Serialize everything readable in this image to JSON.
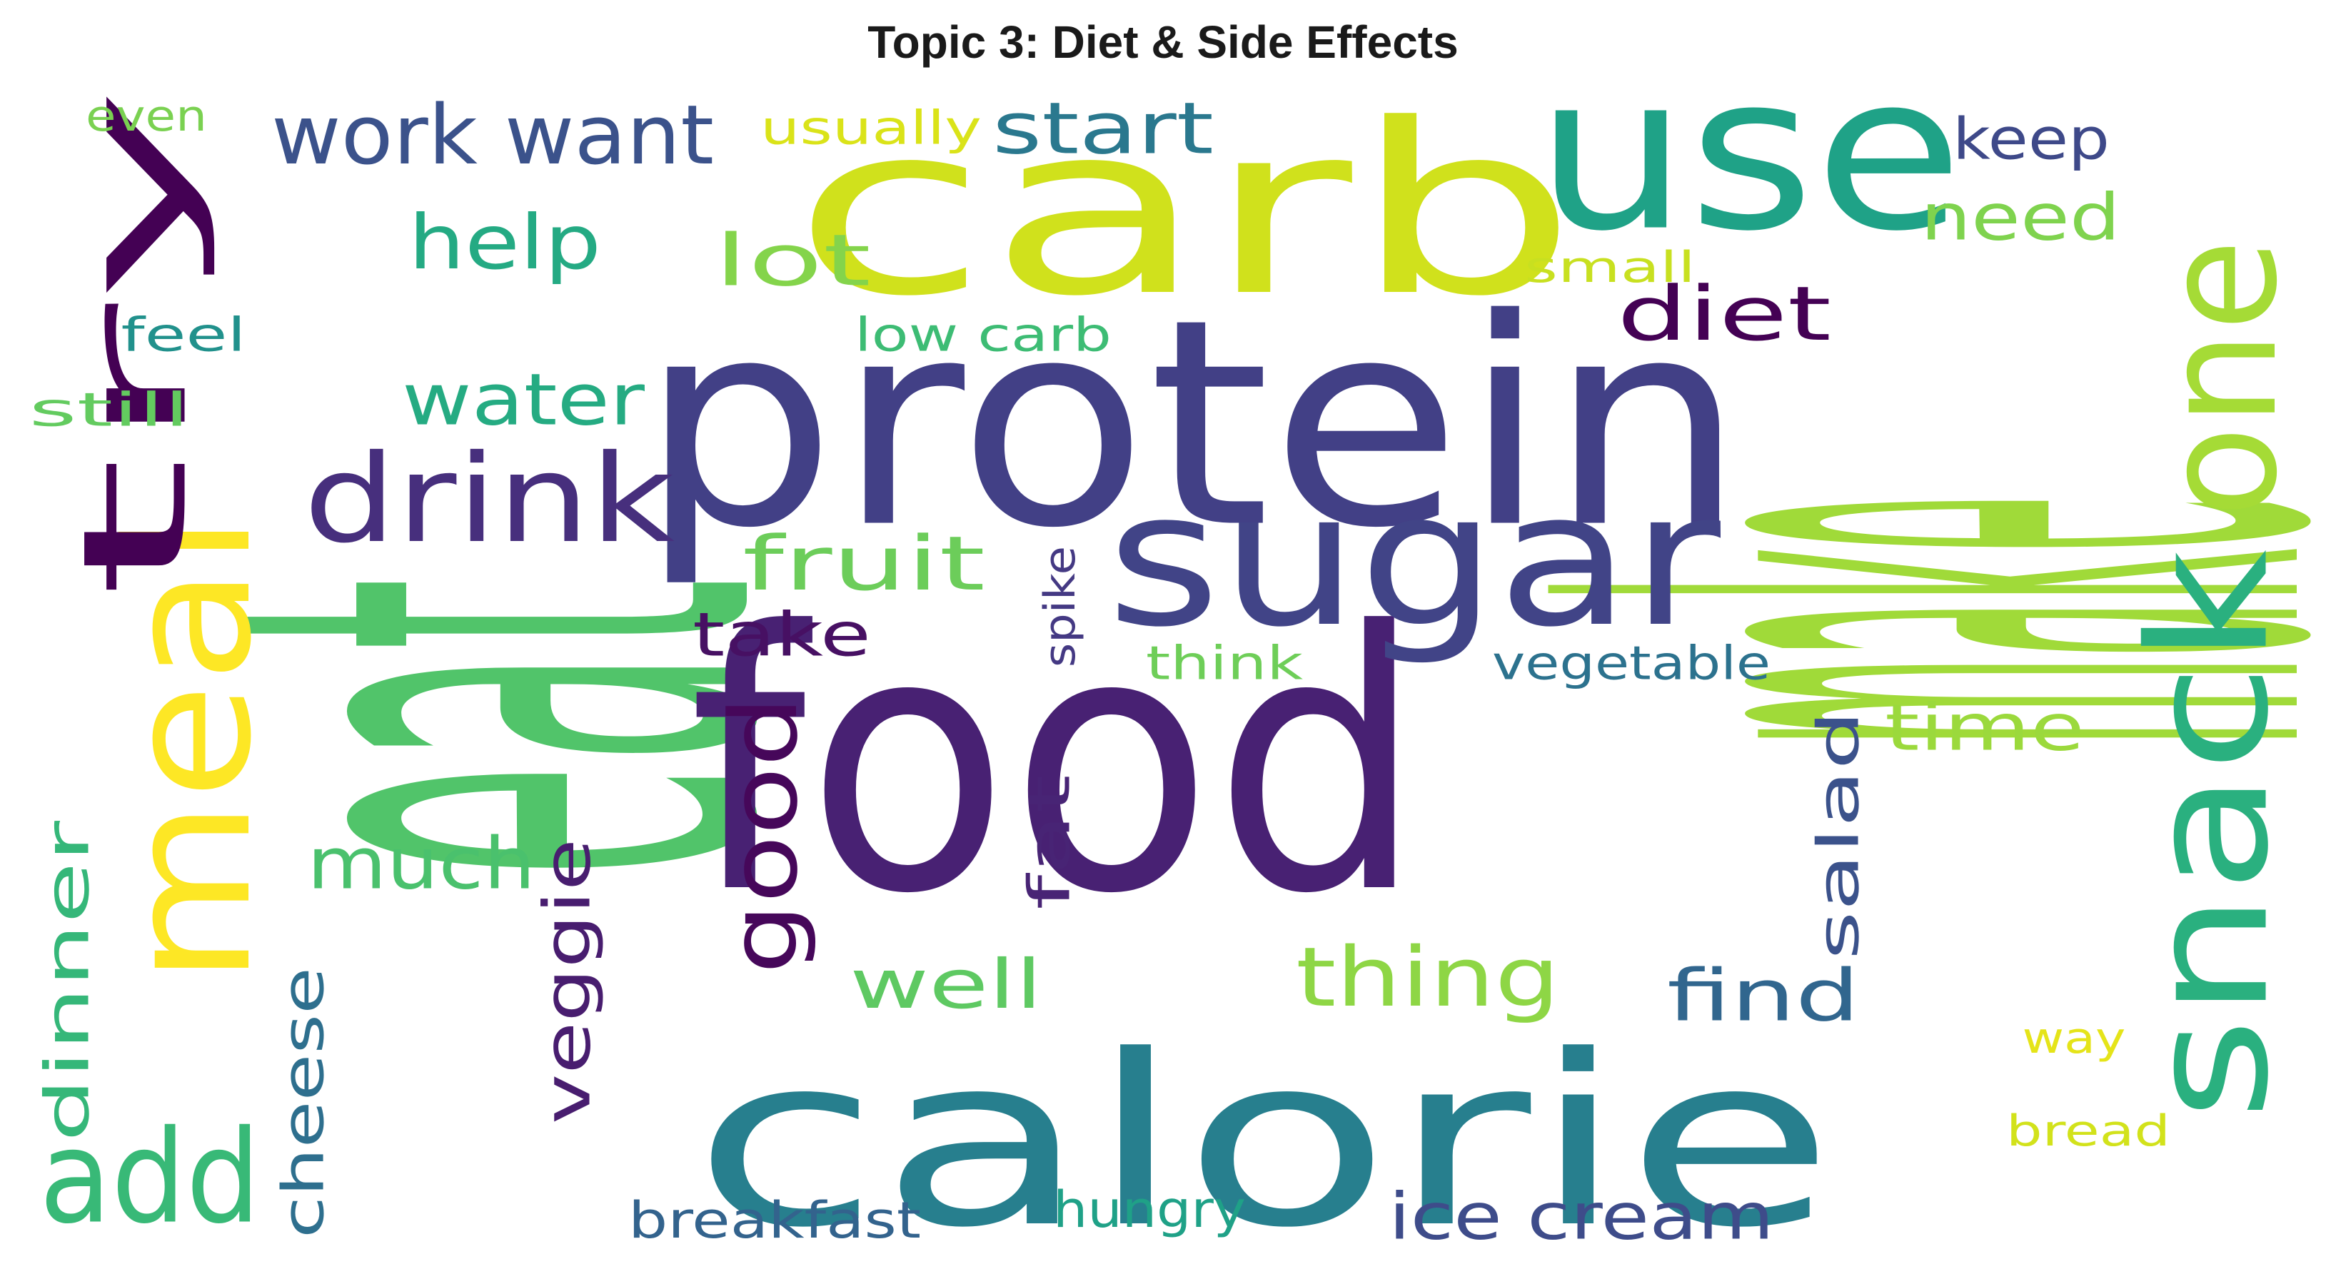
{
  "title": "Topic 3: Diet & Side Effects",
  "words": [
    {
      "text": "eat",
      "color": "#51c46a"
    },
    {
      "text": "food",
      "color": "#482173"
    },
    {
      "text": "make",
      "color": "#a0da39"
    },
    {
      "text": "protein",
      "color": "#424086"
    },
    {
      "text": "carb",
      "color": "#d0e11c"
    },
    {
      "text": "calorie",
      "color": "#277f8e"
    },
    {
      "text": "use",
      "color": "#1fa287"
    },
    {
      "text": "sugar",
      "color": "#414487"
    },
    {
      "text": "snack",
      "color": "#2ab07f"
    },
    {
      "text": "meal",
      "color": "#fde725"
    },
    {
      "text": "one",
      "color": "#a5db36"
    },
    {
      "text": "try",
      "color": "#440154"
    },
    {
      "text": "add",
      "color": "#38b977"
    },
    {
      "text": "drink",
      "color": "#472f7d"
    },
    {
      "text": "good",
      "color": "#46075a"
    },
    {
      "text": "work want",
      "color": "#3b528b"
    },
    {
      "text": "thing",
      "color": "#8ed645"
    },
    {
      "text": "much",
      "color": "#4ac16d"
    },
    {
      "text": "help",
      "color": "#24aa83"
    },
    {
      "text": "start",
      "color": "#2a788e"
    },
    {
      "text": "water",
      "color": "#25ab82"
    },
    {
      "text": "lot",
      "color": "#84d44b"
    },
    {
      "text": "fruit",
      "color": "#6ccd5a"
    },
    {
      "text": "find",
      "color": "#31668e"
    },
    {
      "text": "diet",
      "color": "#440154"
    },
    {
      "text": "well",
      "color": "#5ec962"
    },
    {
      "text": "ice cream",
      "color": "#3e4c8a"
    },
    {
      "text": "veggie",
      "color": "#481d6f"
    },
    {
      "text": "time",
      "color": "#9bd93c"
    },
    {
      "text": "need",
      "color": "#7fd34e"
    },
    {
      "text": "take",
      "color": "#471063"
    },
    {
      "text": "dinner",
      "color": "#35b779"
    },
    {
      "text": "cheese",
      "color": "#2e6f8e"
    },
    {
      "text": "fat",
      "color": "#482475"
    },
    {
      "text": "salad",
      "color": "#3b528b"
    },
    {
      "text": "keep",
      "color": "#3e4989"
    },
    {
      "text": "breakfast",
      "color": "#33638d"
    },
    {
      "text": "hungry",
      "color": "#1fa187"
    },
    {
      "text": "usually",
      "color": "#dae319"
    },
    {
      "text": "low carb",
      "color": "#3dbc74"
    },
    {
      "text": "vegetable",
      "color": "#2c728e"
    },
    {
      "text": "think",
      "color": "#6ece58"
    },
    {
      "text": "spike",
      "color": "#443983"
    },
    {
      "text": "feel",
      "color": "#21918c"
    },
    {
      "text": "still",
      "color": "#63cb5f"
    },
    {
      "text": "small",
      "color": "#c8e020"
    },
    {
      "text": "way",
      "color": "#e5e419"
    },
    {
      "text": "bread",
      "color": "#d2e21b"
    },
    {
      "text": "even",
      "color": "#7ad151"
    }
  ]
}
